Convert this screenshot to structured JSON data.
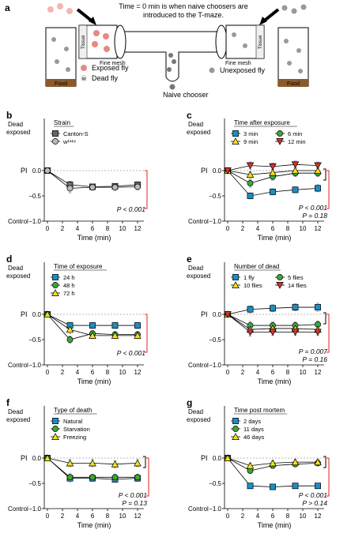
{
  "panel_a": {
    "letter": "a",
    "caption_line1": "Time = 0 min is when naive choosers are",
    "caption_line2": "introduced to the T-maze.",
    "tissue_label": "Tissue",
    "food_label": "Food",
    "mesh_label": "Fine mesh",
    "legend_exposed": "Exposed fly",
    "legend_dead": "Dead fly",
    "legend_unexposed": "Unexposed fly",
    "legend_naive": "Naive chooser"
  },
  "axis_text": {
    "dead_exposed_1": "Dead",
    "dead_exposed_2": "exposed",
    "pi": "PI",
    "control": "Control",
    "xlabel": "Time (min)"
  },
  "colors": {
    "sig_bracket": "#e0231b",
    "cyan": "#1a8fc7",
    "green": "#3aa935",
    "yellow": "#f4e214",
    "red": "#d6322a",
    "gray_dark": "#666666",
    "gray_light": "#bbbbbb"
  },
  "chart_data": [
    {
      "panel": "b",
      "type": "line",
      "x": [
        0,
        3,
        6,
        9,
        12
      ],
      "xticks": [
        0,
        2,
        4,
        6,
        8,
        10,
        12
      ],
      "ylim": [
        -1.0,
        0.1
      ],
      "yticks": [
        "0.0",
        "−0.5",
        "−1.0"
      ],
      "legend_title": "Strain",
      "series": [
        {
          "name": "Canton-S",
          "marker": "square",
          "color": "#666666",
          "values": [
            0,
            -0.28,
            -0.32,
            -0.31,
            -0.28
          ],
          "err": [
            0,
            0.07,
            0.05,
            0.05,
            0.06
          ]
        },
        {
          "name": "w¹¹¹⁸",
          "marker": "circle",
          "color": "#bbbbbb",
          "values": [
            0,
            -0.35,
            -0.33,
            -0.33,
            -0.32
          ],
          "err": [
            0,
            0.09,
            0.06,
            0.06,
            0.06
          ]
        }
      ],
      "stats": [
        {
          "text": "P < 0.001",
          "color": "red"
        }
      ]
    },
    {
      "panel": "c",
      "type": "line",
      "x": [
        0,
        3,
        6,
        9,
        12
      ],
      "xticks": [
        0,
        2,
        4,
        6,
        8,
        10,
        12
      ],
      "ylim": [
        -1.0,
        0.1
      ],
      "yticks": [
        "0.0",
        "−0.5",
        "−1.0"
      ],
      "legend_title": "Time after exposure",
      "series": [
        {
          "name": "3 min",
          "marker": "square",
          "color": "#1a8fc7",
          "values": [
            0,
            -0.5,
            -0.42,
            -0.38,
            -0.35
          ],
          "err": [
            0,
            0.06,
            0.06,
            0.06,
            0.07
          ]
        },
        {
          "name": "6 min",
          "marker": "circle",
          "color": "#3aa935",
          "values": [
            0,
            -0.25,
            -0.12,
            -0.05,
            -0.05
          ],
          "err": [
            0,
            0.08,
            0.07,
            0.07,
            0.07
          ]
        },
        {
          "name": "9 min",
          "marker": "triangle",
          "color": "#f4e214",
          "values": [
            0,
            -0.08,
            -0.04,
            0.0,
            0.0
          ],
          "err": [
            0,
            0.06,
            0.06,
            0.06,
            0.06
          ]
        },
        {
          "name": "12 min",
          "marker": "tri_down",
          "color": "#d6322a",
          "values": [
            0,
            0.1,
            0.08,
            0.12,
            0.1
          ],
          "err": [
            0,
            0.07,
            0.07,
            0.07,
            0.07
          ]
        }
      ],
      "stats": [
        {
          "text": "P < 0.001",
          "color": "red"
        },
        {
          "text": "P = 0.18",
          "color": "black"
        }
      ]
    },
    {
      "panel": "d",
      "type": "line",
      "x": [
        0,
        3,
        6,
        9,
        12
      ],
      "xticks": [
        0,
        2,
        4,
        6,
        8,
        10,
        12
      ],
      "ylim": [
        -1.0,
        0.1
      ],
      "yticks": [
        "0.0",
        "−0.5",
        "−1.0"
      ],
      "legend_title": "Time of exposure",
      "series": [
        {
          "name": "24 h",
          "marker": "square",
          "color": "#1a8fc7",
          "values": [
            0,
            -0.22,
            -0.22,
            -0.22,
            -0.22
          ],
          "err": [
            0,
            0.06,
            0.06,
            0.06,
            0.06
          ]
        },
        {
          "name": "48 h",
          "marker": "circle",
          "color": "#3aa935",
          "values": [
            0,
            -0.5,
            -0.38,
            -0.4,
            -0.4
          ],
          "err": [
            0,
            0.07,
            0.06,
            0.06,
            0.06
          ]
        },
        {
          "name": "72 h",
          "marker": "triangle",
          "color": "#f4e214",
          "values": [
            0,
            -0.3,
            -0.42,
            -0.42,
            -0.42
          ],
          "err": [
            0,
            0.08,
            0.06,
            0.06,
            0.06
          ]
        }
      ],
      "stats": [
        {
          "text": "P < 0.001",
          "color": "red"
        }
      ]
    },
    {
      "panel": "e",
      "type": "line",
      "x": [
        0,
        3,
        6,
        9,
        12
      ],
      "xticks": [
        0,
        2,
        4,
        6,
        8,
        10,
        12
      ],
      "ylim": [
        -1.0,
        0.1
      ],
      "yticks": [
        "0.0",
        "−0.5",
        "−1.0"
      ],
      "legend_title": "Number of dead",
      "series": [
        {
          "name": "1 fly",
          "marker": "square",
          "color": "#1a8fc7",
          "values": [
            0,
            0.1,
            0.12,
            0.14,
            0.14
          ],
          "err": [
            0,
            0.07,
            0.07,
            0.07,
            0.08
          ]
        },
        {
          "name": "5 flies",
          "marker": "circle",
          "color": "#3aa935",
          "values": [
            0,
            -0.22,
            -0.22,
            -0.22,
            -0.2
          ],
          "err": [
            0,
            0.08,
            0.07,
            0.07,
            0.07
          ]
        },
        {
          "name": "10 flies",
          "marker": "triangle",
          "color": "#f4e214",
          "values": [
            0,
            -0.3,
            -0.28,
            -0.28,
            -0.3
          ],
          "err": [
            0,
            0.08,
            0.07,
            0.07,
            0.07
          ]
        },
        {
          "name": "14 flies",
          "marker": "tri_down",
          "color": "#d6322a",
          "values": [
            0,
            -0.35,
            -0.35,
            -0.35,
            -0.35
          ],
          "err": [
            0,
            0.08,
            0.07,
            0.07,
            0.07
          ]
        }
      ],
      "stats": [
        {
          "text": "P = 0.007",
          "color": "red"
        },
        {
          "text": "P = 0.16",
          "color": "black"
        }
      ]
    },
    {
      "panel": "f",
      "type": "line",
      "x": [
        0,
        3,
        6,
        9,
        12
      ],
      "xticks": [
        0,
        2,
        4,
        6,
        8,
        10,
        12
      ],
      "ylim": [
        -1.0,
        0.1
      ],
      "yticks": [
        "0.0",
        "−0.5",
        "−1.0"
      ],
      "legend_title": "Type of death",
      "series": [
        {
          "name": "Natural",
          "marker": "square",
          "color": "#1a8fc7",
          "values": [
            0,
            -0.4,
            -0.4,
            -0.42,
            -0.4
          ],
          "err": [
            0,
            0.07,
            0.06,
            0.06,
            0.06
          ]
        },
        {
          "name": "Starvation",
          "marker": "circle",
          "color": "#3aa935",
          "values": [
            0,
            -0.38,
            -0.38,
            -0.38,
            -0.38
          ],
          "err": [
            0,
            0.07,
            0.06,
            0.06,
            0.06
          ]
        },
        {
          "name": "Freezing",
          "marker": "triangle",
          "color": "#f4e214",
          "values": [
            0,
            -0.1,
            -0.1,
            -0.12,
            -0.1
          ],
          "err": [
            0,
            0.07,
            0.07,
            0.07,
            0.07
          ]
        }
      ],
      "stats": [
        {
          "text": "P < 0.001",
          "color": "red"
        },
        {
          "text": "P = 0.13",
          "color": "black"
        }
      ]
    },
    {
      "panel": "g",
      "type": "line",
      "x": [
        0,
        3,
        6,
        9,
        12
      ],
      "xticks": [
        0,
        2,
        4,
        6,
        8,
        10,
        12
      ],
      "ylim": [
        -1.0,
        0.1
      ],
      "yticks": [
        "0.0",
        "−0.5",
        "−1.0"
      ],
      "legend_title": "Time post mortem",
      "series": [
        {
          "name": "2 days",
          "marker": "square",
          "color": "#1a8fc7",
          "values": [
            0,
            -0.55,
            -0.57,
            -0.55,
            -0.55
          ],
          "err": [
            0,
            0.03,
            0.03,
            0.03,
            0.03
          ]
        },
        {
          "name": "11 days",
          "marker": "circle",
          "color": "#3aa935",
          "values": [
            0,
            -0.25,
            -0.15,
            -0.12,
            -0.1
          ],
          "err": [
            0,
            0.05,
            0.05,
            0.05,
            0.05
          ]
        },
        {
          "name": "46 days",
          "marker": "triangle",
          "color": "#f4e214",
          "values": [
            0,
            -0.15,
            -0.1,
            -0.08,
            -0.08
          ],
          "err": [
            0,
            0.05,
            0.05,
            0.05,
            0.05
          ]
        }
      ],
      "stats": [
        {
          "text": "P < 0.001",
          "color": "red"
        },
        {
          "text": "P > 0.14",
          "color": "black"
        }
      ]
    }
  ]
}
